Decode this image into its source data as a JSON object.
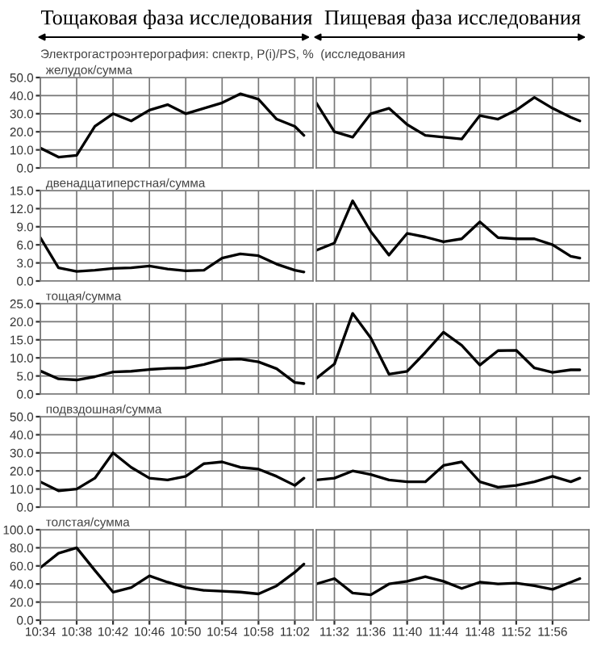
{
  "chart_data": [
    {
      "type": "line",
      "title": "Тощаковая фаза исследования",
      "subtitle": "Электрогастроэнтерография: спектр, P(i)/PS, %  (исследования",
      "annotations": [
        "желудок/сумма"
      ],
      "color": "#000000",
      "x": [
        10.5667,
        10.6,
        10.6333,
        10.6667,
        10.7,
        10.7333,
        10.7667,
        10.8,
        10.8333,
        10.8667,
        10.9,
        10.9333,
        10.9667,
        11.0,
        11.0333,
        11.05
      ],
      "values": [
        11,
        6,
        7,
        23,
        30,
        26,
        32,
        35,
        30,
        33,
        36,
        41,
        38,
        27,
        23,
        18
      ],
      "xlim": [
        10.5667,
        11.0667
      ],
      "ylim": [
        0,
        50
      ],
      "xticks": [
        {
          "value": 10.5667,
          "label": null
        },
        {
          "value": 10.6333,
          "label": null
        },
        {
          "value": 10.7,
          "label": null
        },
        {
          "value": 10.7667,
          "label": null
        },
        {
          "value": 10.8333,
          "label": null
        },
        {
          "value": 10.9,
          "label": null
        },
        {
          "value": 10.9667,
          "label": null
        },
        {
          "value": 11.0333,
          "label": null
        }
      ],
      "yticks": [
        {
          "value": 0,
          "label": "0.0"
        },
        {
          "value": 10,
          "label": "10.0"
        },
        {
          "value": 20,
          "label": "20.0"
        },
        {
          "value": 30,
          "label": "30.0"
        },
        {
          "value": 40,
          "label": "40.0"
        },
        {
          "value": 50,
          "label": "50.0"
        }
      ],
      "grid": true,
      "tick_labels": "y"
    },
    {
      "type": "line",
      "title": "Пищевая фаза исследования",
      "color": "#000000",
      "x": [
        11.5,
        11.5333,
        11.5667,
        11.6,
        11.6333,
        11.6667,
        11.7,
        11.7333,
        11.7667,
        11.8,
        11.8333,
        11.8667,
        11.9,
        11.9333,
        11.9667,
        11.9833
      ],
      "values": [
        36,
        20,
        17,
        30,
        33,
        24,
        18,
        17,
        16,
        29,
        27,
        32,
        39,
        33,
        28,
        26
      ],
      "xlim": [
        11.5,
        12.0
      ],
      "ylim": [
        0,
        50
      ],
      "xticks": [
        {
          "value": 11.5333,
          "label": null
        },
        {
          "value": 11.6,
          "label": null
        },
        {
          "value": 11.6667,
          "label": null
        },
        {
          "value": 11.7333,
          "label": null
        },
        {
          "value": 11.8,
          "label": null
        },
        {
          "value": 11.8667,
          "label": null
        },
        {
          "value": 11.9333,
          "label": null
        }
      ],
      "yticks": [
        {
          "value": 0,
          "label": null
        },
        {
          "value": 10,
          "label": null
        },
        {
          "value": 20,
          "label": null
        },
        {
          "value": 30,
          "label": null
        },
        {
          "value": 40,
          "label": null
        },
        {
          "value": 50,
          "label": null
        }
      ],
      "grid": true,
      "tick_labels": false
    },
    {
      "type": "line",
      "annotations": [
        "двенадцатиперстная/сумма"
      ],
      "color": "#000000",
      "x": [
        10.5667,
        10.6,
        10.6333,
        10.6667,
        10.7,
        10.7333,
        10.7667,
        10.8,
        10.8333,
        10.8667,
        10.9,
        10.9333,
        10.9667,
        11.0,
        11.0333,
        11.05
      ],
      "values": [
        7.2,
        2.2,
        1.6,
        1.8,
        2.1,
        2.2,
        2.5,
        2.0,
        1.7,
        1.8,
        3.8,
        4.5,
        4.2,
        2.8,
        1.8,
        1.5
      ],
      "xlim": [
        10.5667,
        11.0667
      ],
      "ylim": [
        0,
        15
      ],
      "xticks": [
        {
          "value": 10.5667,
          "label": null
        },
        {
          "value": 10.6333,
          "label": null
        },
        {
          "value": 10.7,
          "label": null
        },
        {
          "value": 10.7667,
          "label": null
        },
        {
          "value": 10.8333,
          "label": null
        },
        {
          "value": 10.9,
          "label": null
        },
        {
          "value": 10.9667,
          "label": null
        },
        {
          "value": 11.0333,
          "label": null
        }
      ],
      "yticks": [
        {
          "value": 0,
          "label": "0.0"
        },
        {
          "value": 3,
          "label": "3.0"
        },
        {
          "value": 6,
          "label": "6.0"
        },
        {
          "value": 9,
          "label": "9.0"
        },
        {
          "value": 12,
          "label": "12.0"
        },
        {
          "value": 15,
          "label": "15.0"
        }
      ],
      "grid": true,
      "tick_labels": "y"
    },
    {
      "type": "line",
      "color": "#000000",
      "x": [
        11.5,
        11.5333,
        11.5667,
        11.6,
        11.6333,
        11.6667,
        11.7,
        11.7333,
        11.7667,
        11.8,
        11.8333,
        11.8667,
        11.9,
        11.9333,
        11.9667,
        11.9833
      ],
      "values": [
        5.1,
        6.3,
        13.3,
        8.2,
        4.3,
        7.9,
        7.3,
        6.5,
        7.0,
        9.8,
        7.2,
        7.0,
        7.0,
        6.0,
        4.1,
        3.8
      ],
      "xlim": [
        11.5,
        12.0
      ],
      "ylim": [
        0,
        15
      ],
      "xticks": [
        {
          "value": 11.5333,
          "label": null
        },
        {
          "value": 11.6,
          "label": null
        },
        {
          "value": 11.6667,
          "label": null
        },
        {
          "value": 11.7333,
          "label": null
        },
        {
          "value": 11.8,
          "label": null
        },
        {
          "value": 11.8667,
          "label": null
        },
        {
          "value": 11.9333,
          "label": null
        }
      ],
      "yticks": [
        {
          "value": 0,
          "label": null
        },
        {
          "value": 3,
          "label": null
        },
        {
          "value": 6,
          "label": null
        },
        {
          "value": 9,
          "label": null
        },
        {
          "value": 12,
          "label": null
        },
        {
          "value": 15,
          "label": null
        }
      ],
      "grid": true,
      "tick_labels": false
    },
    {
      "type": "line",
      "annotations": [
        "тощая/сумма"
      ],
      "color": "#000000",
      "x": [
        10.5667,
        10.6,
        10.6333,
        10.6667,
        10.7,
        10.7333,
        10.7667,
        10.8,
        10.8333,
        10.8667,
        10.9,
        10.9333,
        10.9667,
        11.0,
        11.0333,
        11.05
      ],
      "values": [
        6.4,
        4.2,
        3.9,
        4.8,
        6.1,
        6.3,
        6.8,
        7.1,
        7.2,
        8.2,
        9.5,
        9.7,
        8.9,
        7.0,
        3.2,
        2.9
      ],
      "xlim": [
        10.5667,
        11.0667
      ],
      "ylim": [
        0,
        25
      ],
      "xticks": [
        {
          "value": 10.5667,
          "label": null
        },
        {
          "value": 10.6333,
          "label": null
        },
        {
          "value": 10.7,
          "label": null
        },
        {
          "value": 10.7667,
          "label": null
        },
        {
          "value": 10.8333,
          "label": null
        },
        {
          "value": 10.9,
          "label": null
        },
        {
          "value": 10.9667,
          "label": null
        },
        {
          "value": 11.0333,
          "label": null
        }
      ],
      "yticks": [
        {
          "value": 0,
          "label": "0.0"
        },
        {
          "value": 5,
          "label": "5.0"
        },
        {
          "value": 10,
          "label": "10.0"
        },
        {
          "value": 15,
          "label": "15.0"
        },
        {
          "value": 20,
          "label": "20.0"
        },
        {
          "value": 25,
          "label": "25.0"
        }
      ],
      "grid": true,
      "tick_labels": "y"
    },
    {
      "type": "line",
      "color": "#000000",
      "x": [
        11.5,
        11.5333,
        11.5667,
        11.6,
        11.6333,
        11.6667,
        11.7,
        11.7333,
        11.7667,
        11.8,
        11.8333,
        11.8667,
        11.9,
        11.9333,
        11.9667,
        11.9833
      ],
      "values": [
        4.3,
        8.3,
        22.3,
        15.5,
        5.5,
        6.3,
        11.5,
        17.1,
        13.5,
        8.0,
        12.0,
        12.1,
        7.2,
        6.0,
        6.7,
        6.7
      ],
      "xlim": [
        11.5,
        12.0
      ],
      "ylim": [
        0,
        25
      ],
      "xticks": [
        {
          "value": 11.5333,
          "label": null
        },
        {
          "value": 11.6,
          "label": null
        },
        {
          "value": 11.6667,
          "label": null
        },
        {
          "value": 11.7333,
          "label": null
        },
        {
          "value": 11.8,
          "label": null
        },
        {
          "value": 11.8667,
          "label": null
        },
        {
          "value": 11.9333,
          "label": null
        }
      ],
      "yticks": [
        {
          "value": 0,
          "label": null
        },
        {
          "value": 5,
          "label": null
        },
        {
          "value": 10,
          "label": null
        },
        {
          "value": 15,
          "label": null
        },
        {
          "value": 20,
          "label": null
        },
        {
          "value": 25,
          "label": null
        }
      ],
      "grid": true,
      "tick_labels": false
    },
    {
      "type": "line",
      "annotations": [
        "подвздошная/сумма"
      ],
      "color": "#000000",
      "x": [
        10.5667,
        10.6,
        10.6333,
        10.6667,
        10.7,
        10.7333,
        10.7667,
        10.8,
        10.8333,
        10.8667,
        10.9,
        10.9333,
        10.9667,
        11.0,
        11.0333,
        11.05
      ],
      "values": [
        14,
        9,
        10,
        16,
        30,
        22,
        16,
        15,
        17,
        24,
        25,
        22,
        21,
        17,
        12,
        16
      ],
      "xlim": [
        10.5667,
        11.0667
      ],
      "ylim": [
        0,
        50
      ],
      "xticks": [
        {
          "value": 10.5667,
          "label": null
        },
        {
          "value": 10.6333,
          "label": null
        },
        {
          "value": 10.7,
          "label": null
        },
        {
          "value": 10.7667,
          "label": null
        },
        {
          "value": 10.8333,
          "label": null
        },
        {
          "value": 10.9,
          "label": null
        },
        {
          "value": 10.9667,
          "label": null
        },
        {
          "value": 11.0333,
          "label": null
        }
      ],
      "yticks": [
        {
          "value": 0,
          "label": "0.0"
        },
        {
          "value": 10,
          "label": "10.0"
        },
        {
          "value": 20,
          "label": "20.0"
        },
        {
          "value": 30,
          "label": "30.0"
        },
        {
          "value": 40,
          "label": "40.0"
        },
        {
          "value": 50,
          "label": "50.0"
        }
      ],
      "grid": true,
      "tick_labels": "y"
    },
    {
      "type": "line",
      "color": "#000000",
      "x": [
        11.5,
        11.5333,
        11.5667,
        11.6,
        11.6333,
        11.6667,
        11.7,
        11.7333,
        11.7667,
        11.8,
        11.8333,
        11.8667,
        11.9,
        11.9333,
        11.9667,
        11.9833
      ],
      "values": [
        15,
        16,
        20,
        18,
        15,
        14,
        14,
        23,
        25,
        14,
        11,
        12,
        14,
        17,
        14,
        16
      ],
      "xlim": [
        11.5,
        12.0
      ],
      "ylim": [
        0,
        50
      ],
      "xticks": [
        {
          "value": 11.5333,
          "label": null
        },
        {
          "value": 11.6,
          "label": null
        },
        {
          "value": 11.6667,
          "label": null
        },
        {
          "value": 11.7333,
          "label": null
        },
        {
          "value": 11.8,
          "label": null
        },
        {
          "value": 11.8667,
          "label": null
        },
        {
          "value": 11.9333,
          "label": null
        }
      ],
      "yticks": [
        {
          "value": 0,
          "label": null
        },
        {
          "value": 10,
          "label": null
        },
        {
          "value": 20,
          "label": null
        },
        {
          "value": 30,
          "label": null
        },
        {
          "value": 40,
          "label": null
        },
        {
          "value": 50,
          "label": null
        }
      ],
      "grid": true,
      "tick_labels": false
    },
    {
      "type": "line",
      "annotations": [
        "толстая/сумма"
      ],
      "color": "#000000",
      "x": [
        10.5667,
        10.6,
        10.6333,
        10.6667,
        10.7,
        10.7333,
        10.7667,
        10.8,
        10.8333,
        10.8667,
        10.9,
        10.9333,
        10.9667,
        11.0,
        11.0333,
        11.05
      ],
      "values": [
        58,
        74,
        80,
        55,
        31,
        36,
        49,
        42,
        36,
        33,
        32,
        31,
        29,
        38,
        53,
        62
      ],
      "xlim": [
        10.5667,
        11.0667
      ],
      "ylim": [
        0,
        100
      ],
      "xticks": [
        {
          "value": 10.5667,
          "label": "10:34"
        },
        {
          "value": 10.6333,
          "label": "10:38"
        },
        {
          "value": 10.7,
          "label": "10:42"
        },
        {
          "value": 10.7667,
          "label": "10:46"
        },
        {
          "value": 10.8333,
          "label": "10:50"
        },
        {
          "value": 10.9,
          "label": "10:54"
        },
        {
          "value": 10.9667,
          "label": "10:58"
        },
        {
          "value": 11.0333,
          "label": "11:02"
        }
      ],
      "yticks": [
        {
          "value": 0,
          "label": "0.0"
        },
        {
          "value": 20,
          "label": "20.0"
        },
        {
          "value": 40,
          "label": "40.0"
        },
        {
          "value": 60,
          "label": "60.0"
        },
        {
          "value": 80,
          "label": "80.0"
        },
        {
          "value": 100,
          "label": "100.0"
        }
      ],
      "grid": true
    },
    {
      "type": "line",
      "color": "#000000",
      "x": [
        11.5,
        11.5333,
        11.5667,
        11.6,
        11.6333,
        11.6667,
        11.7,
        11.7333,
        11.7667,
        11.8,
        11.8333,
        11.8667,
        11.9,
        11.9333,
        11.9667,
        11.9833
      ],
      "values": [
        40,
        46,
        30,
        28,
        40,
        43,
        48,
        43,
        35,
        42,
        40,
        41,
        38,
        34,
        42,
        46
      ],
      "xlim": [
        11.5,
        12.0
      ],
      "ylim": [
        0,
        100
      ],
      "xticks": [
        {
          "value": 11.5333,
          "label": "11:32"
        },
        {
          "value": 11.6,
          "label": "11:36"
        },
        {
          "value": 11.6667,
          "label": "11:40"
        },
        {
          "value": 11.7333,
          "label": "11:44"
        },
        {
          "value": 11.8,
          "label": "11:48"
        },
        {
          "value": 11.8667,
          "label": "11:52"
        },
        {
          "value": 11.9333,
          "label": "11:56"
        }
      ],
      "yticks": [
        {
          "value": 0,
          "label": null
        },
        {
          "value": 20,
          "label": null
        },
        {
          "value": 40,
          "label": null
        },
        {
          "value": 60,
          "label": null
        },
        {
          "value": 80,
          "label": null
        },
        {
          "value": 100,
          "label": null
        }
      ],
      "grid": true,
      "tick_labels": "x"
    }
  ]
}
